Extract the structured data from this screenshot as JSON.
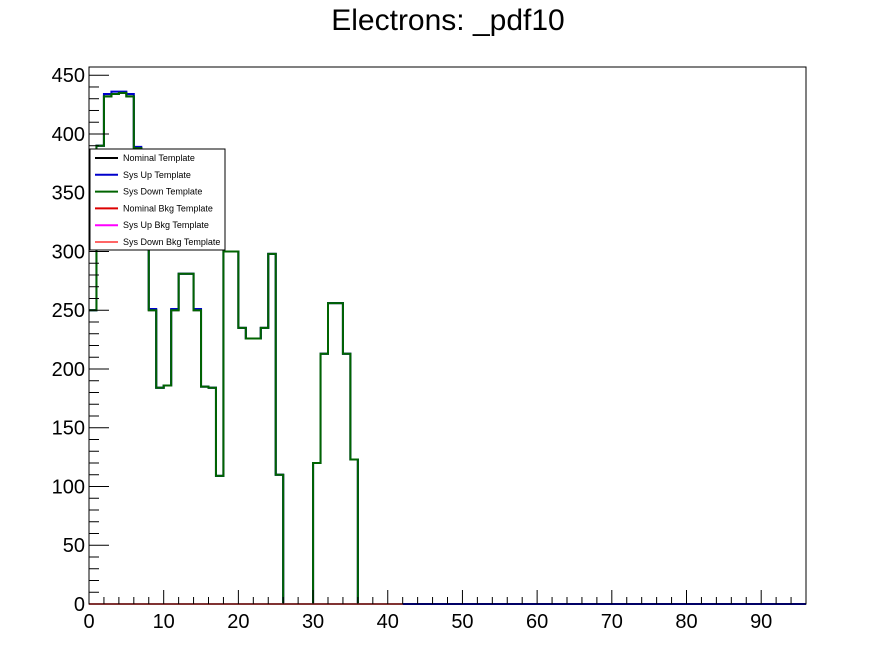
{
  "chart_data": {
    "type": "line",
    "title": "Electrons: _pdf10",
    "xlabel": "",
    "ylabel": "",
    "xlim": [
      0,
      96
    ],
    "ylim": [
      0,
      457
    ],
    "xticks": [
      0,
      10,
      20,
      30,
      40,
      50,
      60,
      70,
      80,
      90
    ],
    "yticks": [
      0,
      50,
      100,
      150,
      200,
      250,
      300,
      350,
      400,
      450
    ],
    "bin_width": 1,
    "bin_start": 0,
    "legend": {
      "placement": "upper-left"
    },
    "grid": false,
    "series": [
      {
        "name": "Nominal Template",
        "color": "#000000",
        "values": [
          250,
          390,
          432,
          434,
          435,
          432,
          388,
          340,
          250,
          184,
          186,
          250,
          281,
          281,
          250,
          185,
          184,
          109,
          300,
          300,
          235,
          226,
          226,
          235,
          298,
          110,
          0,
          0,
          0,
          0,
          120,
          213,
          256,
          256,
          213,
          123,
          0,
          0,
          0,
          0,
          0,
          0
        ]
      },
      {
        "name": "Sys Up Template",
        "color": "#0000cc",
        "values": [
          250,
          390,
          434,
          436,
          436,
          434,
          389,
          340,
          251,
          184,
          186,
          251,
          281,
          281,
          251,
          185,
          184,
          109,
          300,
          300,
          235,
          226,
          226,
          235,
          298,
          110,
          0,
          0,
          0,
          0,
          120,
          213,
          256,
          256,
          213,
          123,
          0,
          0,
          0,
          0,
          0,
          0,
          0,
          0,
          0,
          0,
          0,
          0,
          0,
          0,
          0,
          0,
          0,
          0,
          0,
          0,
          0,
          0,
          0,
          0,
          0,
          0,
          0,
          0,
          0,
          0,
          0,
          0,
          0,
          0,
          0,
          0,
          0,
          0,
          0,
          0,
          0,
          0,
          0,
          0,
          0,
          0,
          0,
          0,
          0,
          0,
          0,
          0,
          0,
          0,
          0,
          0,
          0,
          0,
          0,
          0
        ]
      },
      {
        "name": "Sys Down Template",
        "color": "#006400",
        "values": [
          250,
          390,
          432,
          434,
          435,
          432,
          388,
          340,
          250,
          184,
          186,
          250,
          281,
          281,
          250,
          185,
          184,
          109,
          300,
          300,
          235,
          226,
          226,
          235,
          298,
          110,
          0,
          0,
          0,
          0,
          120,
          213,
          256,
          256,
          213,
          123,
          0,
          0,
          0,
          0,
          0,
          0
        ]
      },
      {
        "name": "Nominal Bkg Template",
        "color": "#dd0000",
        "values": [
          0,
          0,
          0,
          0,
          0,
          0,
          0,
          0,
          0,
          0,
          0,
          0,
          0,
          0,
          0,
          0,
          0,
          0,
          0,
          0,
          0,
          0,
          0,
          0,
          0,
          0,
          0,
          0,
          0,
          0,
          0,
          0,
          0,
          0,
          0,
          0,
          0,
          0,
          0,
          0,
          0,
          0
        ]
      },
      {
        "name": "Sys Up Bkg Template",
        "color": "#ff00ff",
        "values": [
          0,
          0,
          0,
          0,
          0,
          0,
          0,
          0,
          0,
          0,
          0,
          0,
          0,
          0,
          0,
          0,
          0,
          0,
          0,
          0,
          0,
          0,
          0,
          0,
          0,
          0,
          0,
          0,
          0,
          0,
          0,
          0,
          0,
          0,
          0,
          0,
          0,
          0,
          0,
          0,
          0,
          0
        ]
      },
      {
        "name": "Sys Down Bkg Template",
        "color": "#ff6666",
        "values": [
          0,
          0,
          0,
          0,
          0,
          0,
          0,
          0,
          0,
          0,
          0,
          0,
          0,
          0,
          0,
          0,
          0,
          0,
          0,
          0,
          0,
          0,
          0,
          0,
          0,
          0,
          0,
          0,
          0,
          0,
          0,
          0,
          0,
          0,
          0,
          0,
          0,
          0,
          0,
          0,
          0,
          0
        ]
      }
    ]
  }
}
